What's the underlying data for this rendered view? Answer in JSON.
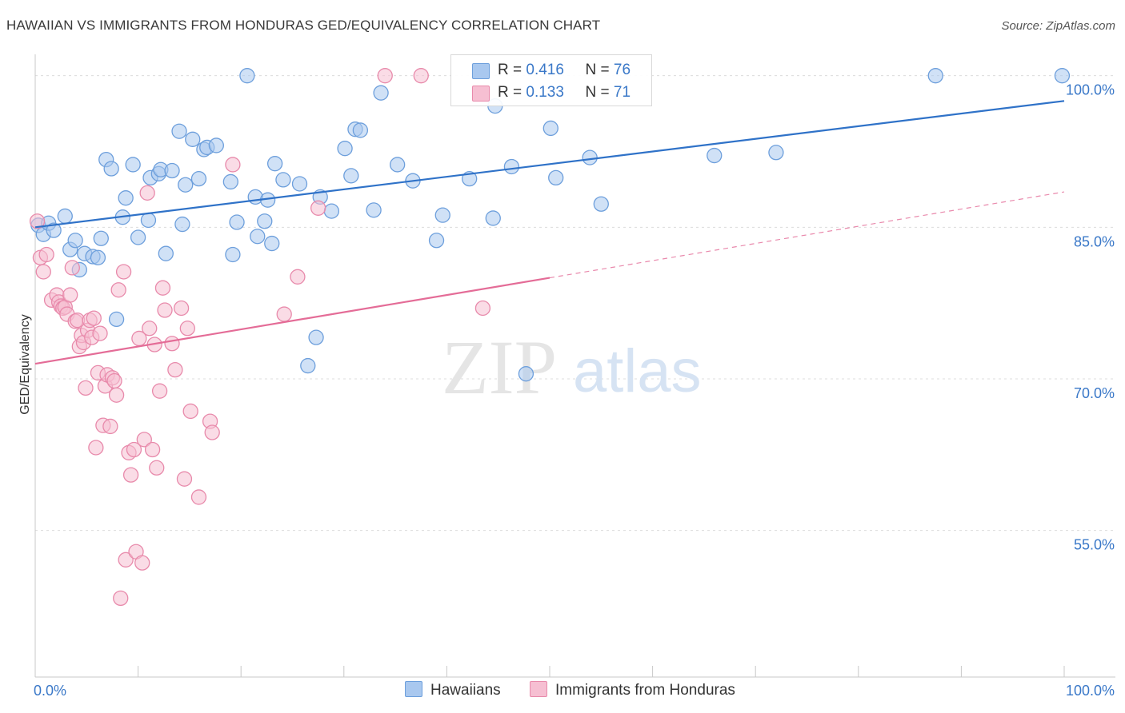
{
  "title": "HAWAIIAN VS IMMIGRANTS FROM HONDURAS GED/EQUIVALENCY CORRELATION CHART",
  "source": "Source: ZipAtlas.com",
  "watermark": {
    "zip": "ZIP",
    "atlas": "atlas"
  },
  "legend": {
    "r_label": "R =",
    "n_label": "N =",
    "series": [
      {
        "name": "Hawaiians",
        "r": "0.416",
        "n": "76"
      },
      {
        "name": "Immigrants from Honduras",
        "r": "0.133",
        "n": "71"
      }
    ]
  },
  "colors": {
    "blue_fill": "#a9c8ef",
    "blue_stroke": "#6d9fdc",
    "blue_line": "#2f72c8",
    "pink_fill": "#f6bfd2",
    "pink_stroke": "#e88aab",
    "pink_line": "#e46c97",
    "axis_text": "#3a78c8",
    "grid": "#dcdcdc"
  },
  "chart_data": {
    "type": "scatter",
    "title": "HAWAIIAN VS IMMIGRANTS FROM HONDURAS GED/EQUIVALENCY CORRELATION CHART",
    "xlabel": "",
    "ylabel": "GED/Equivalency",
    "xlim": [
      0,
      100
    ],
    "ylim": [
      40.5,
      101.2
    ],
    "x_tick_labels": [
      {
        "value": 0,
        "label": "0.0%"
      },
      {
        "value": 100,
        "label": "100.0%"
      }
    ],
    "y_tick_labels": [
      {
        "value": 55,
        "label": "55.0%"
      },
      {
        "value": 70,
        "label": "70.0%"
      },
      {
        "value": 85,
        "label": "85.0%"
      },
      {
        "value": 100,
        "label": "100.0%"
      }
    ],
    "x_minor_ticks": [
      10,
      20,
      30,
      40,
      50,
      60,
      70,
      80,
      90,
      100
    ],
    "series": [
      {
        "name": "Hawaiians",
        "color": "#6d9fdc",
        "trend": {
          "x0": 0,
          "y0": 85.0,
          "x1": 100,
          "y1": 97.5,
          "style": "solid"
        },
        "points": [
          [
            0.3,
            85.2
          ],
          [
            0.8,
            84.3
          ],
          [
            1.3,
            85.4
          ],
          [
            1.8,
            84.7
          ],
          [
            2.9,
            86.1
          ],
          [
            3.4,
            82.8
          ],
          [
            3.9,
            83.7
          ],
          [
            4.3,
            80.8
          ],
          [
            4.8,
            82.4
          ],
          [
            5.6,
            82.1
          ],
          [
            6.1,
            82.0
          ],
          [
            6.4,
            83.9
          ],
          [
            6.9,
            91.7
          ],
          [
            7.4,
            90.8
          ],
          [
            7.9,
            75.9
          ],
          [
            8.5,
            86.0
          ],
          [
            8.8,
            87.9
          ],
          [
            9.5,
            91.2
          ],
          [
            10.0,
            84.0
          ],
          [
            11.0,
            85.7
          ],
          [
            11.2,
            89.9
          ],
          [
            12.0,
            90.3
          ],
          [
            12.2,
            90.7
          ],
          [
            12.7,
            82.4
          ],
          [
            13.3,
            90.6
          ],
          [
            14.0,
            94.5
          ],
          [
            14.3,
            85.3
          ],
          [
            14.6,
            89.2
          ],
          [
            15.3,
            93.7
          ],
          [
            15.9,
            89.8
          ],
          [
            16.4,
            92.7
          ],
          [
            16.7,
            92.9
          ],
          [
            17.6,
            93.1
          ],
          [
            19.0,
            89.5
          ],
          [
            19.2,
            82.3
          ],
          [
            19.6,
            85.5
          ],
          [
            20.6,
            100.0
          ],
          [
            21.4,
            88.0
          ],
          [
            21.6,
            84.1
          ],
          [
            22.3,
            85.6
          ],
          [
            22.6,
            87.7
          ],
          [
            23.0,
            83.4
          ],
          [
            23.3,
            91.3
          ],
          [
            24.1,
            89.7
          ],
          [
            25.7,
            89.3
          ],
          [
            26.5,
            71.3
          ],
          [
            27.3,
            74.1
          ],
          [
            27.7,
            88.0
          ],
          [
            28.8,
            86.6
          ],
          [
            30.1,
            92.8
          ],
          [
            30.7,
            90.1
          ],
          [
            31.1,
            94.7
          ],
          [
            31.6,
            94.6
          ],
          [
            32.9,
            86.7
          ],
          [
            33.6,
            98.3
          ],
          [
            35.2,
            91.2
          ],
          [
            36.7,
            89.6
          ],
          [
            39.0,
            83.7
          ],
          [
            39.6,
            86.2
          ],
          [
            42.2,
            89.8
          ],
          [
            44.5,
            85.9
          ],
          [
            44.7,
            97.0
          ],
          [
            46.3,
            91.0
          ],
          [
            47.7,
            70.5
          ],
          [
            50.1,
            94.8
          ],
          [
            50.6,
            89.9
          ],
          [
            53.9,
            91.9
          ],
          [
            55.0,
            87.3
          ],
          [
            66.0,
            92.1
          ],
          [
            72.0,
            92.4
          ],
          [
            87.5,
            100.0
          ],
          [
            99.8,
            100.0
          ]
        ]
      },
      {
        "name": "Immigrants from Honduras",
        "color": "#e88aab",
        "trend": {
          "x0": 0,
          "y0": 71.5,
          "x1": 100,
          "y1": 88.5,
          "solid_until": 50,
          "style": "solid-then-dashed"
        },
        "points": [
          [
            0.2,
            85.6
          ],
          [
            0.5,
            82.0
          ],
          [
            0.8,
            80.6
          ],
          [
            1.1,
            82.3
          ],
          [
            1.6,
            77.8
          ],
          [
            2.1,
            78.3
          ],
          [
            2.3,
            77.6
          ],
          [
            2.5,
            77.2
          ],
          [
            2.7,
            77.0
          ],
          [
            2.9,
            77.1
          ],
          [
            3.1,
            76.4
          ],
          [
            3.4,
            78.3
          ],
          [
            3.6,
            81.0
          ],
          [
            3.9,
            75.7
          ],
          [
            4.1,
            75.8
          ],
          [
            4.3,
            73.2
          ],
          [
            4.5,
            74.3
          ],
          [
            4.7,
            73.6
          ],
          [
            4.9,
            69.1
          ],
          [
            5.1,
            74.8
          ],
          [
            5.3,
            75.8
          ],
          [
            5.5,
            74.1
          ],
          [
            5.7,
            76.0
          ],
          [
            5.9,
            63.2
          ],
          [
            6.1,
            70.6
          ],
          [
            6.3,
            74.5
          ],
          [
            6.6,
            65.4
          ],
          [
            6.8,
            69.3
          ],
          [
            7.0,
            70.4
          ],
          [
            7.3,
            65.3
          ],
          [
            7.5,
            70.1
          ],
          [
            7.7,
            69.8
          ],
          [
            7.9,
            68.4
          ],
          [
            8.1,
            78.8
          ],
          [
            8.3,
            48.3
          ],
          [
            8.6,
            80.6
          ],
          [
            8.8,
            52.1
          ],
          [
            9.1,
            62.7
          ],
          [
            9.3,
            60.5
          ],
          [
            9.6,
            63.0
          ],
          [
            9.8,
            52.9
          ],
          [
            10.1,
            74.0
          ],
          [
            10.4,
            51.8
          ],
          [
            10.6,
            64.0
          ],
          [
            10.9,
            88.4
          ],
          [
            11.1,
            75.0
          ],
          [
            11.4,
            63.0
          ],
          [
            11.6,
            73.4
          ],
          [
            11.8,
            61.2
          ],
          [
            12.1,
            68.8
          ],
          [
            12.4,
            79.0
          ],
          [
            12.6,
            76.8
          ],
          [
            13.3,
            73.5
          ],
          [
            13.6,
            70.9
          ],
          [
            14.2,
            77.0
          ],
          [
            14.5,
            60.1
          ],
          [
            14.8,
            75.0
          ],
          [
            15.1,
            66.8
          ],
          [
            15.9,
            58.3
          ],
          [
            17.0,
            65.8
          ],
          [
            17.2,
            64.7
          ],
          [
            19.2,
            91.2
          ],
          [
            24.2,
            76.4
          ],
          [
            25.5,
            80.1
          ],
          [
            27.5,
            86.9
          ],
          [
            34.0,
            100.0
          ],
          [
            37.5,
            100.0
          ],
          [
            43.5,
            77.0
          ]
        ]
      }
    ]
  }
}
